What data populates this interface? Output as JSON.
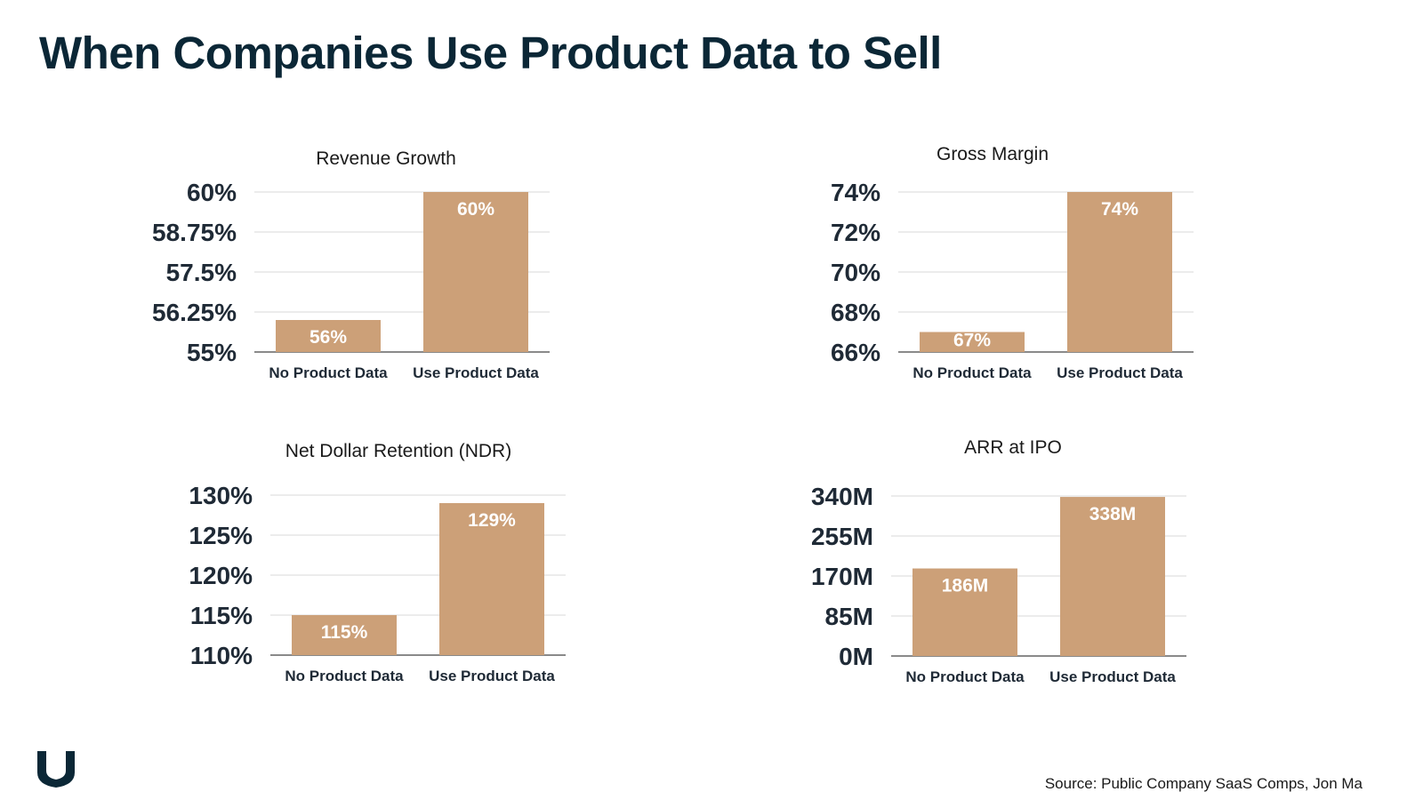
{
  "title": "When Companies Use Product Data to Sell",
  "source": "Source: Public Company SaaS Comps, Jon Ma",
  "logo": "brand-v-mark",
  "colors": {
    "bar": "#cca078",
    "title": "#0b2736",
    "axis_text": "#1f2a36",
    "grid": "#d9d9d9"
  },
  "chart_data": [
    {
      "type": "bar",
      "title": "Revenue Growth",
      "categories": [
        "No Product Data",
        "Use Product Data"
      ],
      "values": [
        56,
        60
      ],
      "value_labels": [
        "56%",
        "60%"
      ],
      "yticks": [
        "60%",
        "58.75%",
        "57.5%",
        "56.25%",
        "55%"
      ],
      "ylim": [
        55,
        60
      ],
      "grid": true
    },
    {
      "type": "bar",
      "title": "Gross Margin",
      "categories": [
        "No Product Data",
        "Use Product Data"
      ],
      "values": [
        67,
        74
      ],
      "value_labels": [
        "67%",
        "74%"
      ],
      "yticks": [
        "74%",
        "72%",
        "70%",
        "68%",
        "66%"
      ],
      "ylim": [
        66,
        74
      ],
      "grid": true
    },
    {
      "type": "bar",
      "title": "Net Dollar Retention (NDR)",
      "categories": [
        "No Product Data",
        "Use Product Data"
      ],
      "values": [
        115,
        129
      ],
      "value_labels": [
        "115%",
        "129%"
      ],
      "yticks": [
        "130%",
        "125%",
        "120%",
        "115%",
        "110%"
      ],
      "ylim": [
        110,
        130
      ],
      "grid": true
    },
    {
      "type": "bar",
      "title": "ARR at IPO",
      "categories": [
        "No Product Data",
        "Use Product Data"
      ],
      "values": [
        186,
        338
      ],
      "value_labels": [
        "186M",
        "338M"
      ],
      "yticks": [
        "340M",
        "255M",
        "170M",
        "85M",
        "0M"
      ],
      "ylim": [
        0,
        340
      ],
      "grid": true
    }
  ]
}
